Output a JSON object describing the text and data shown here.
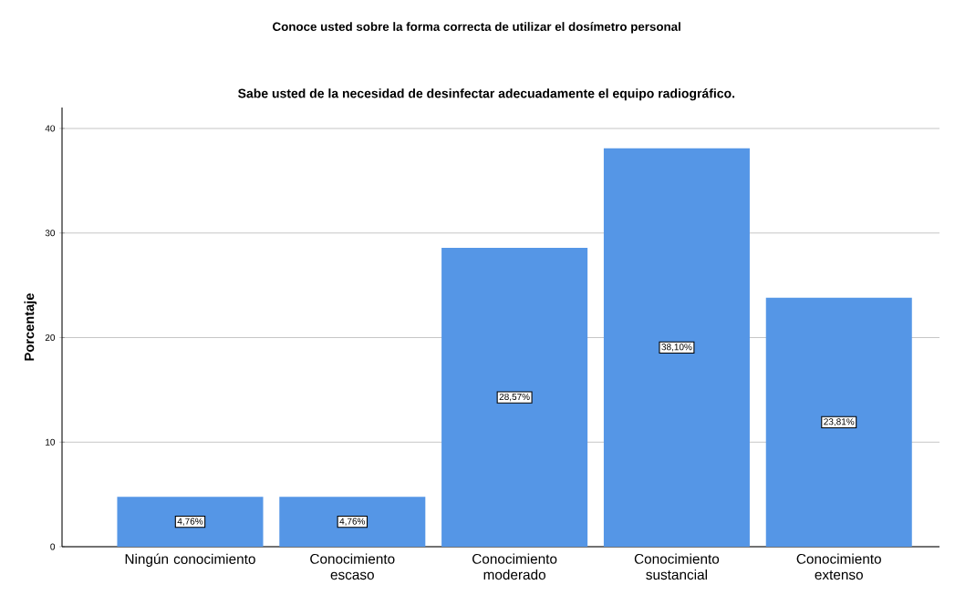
{
  "chart_data": {
    "type": "bar",
    "title": "Conoce usted sobre la forma correcta de utilizar el dosímetro personal",
    "subtitle": "Sabe usted de la necesidad de desinfectar adecuadamente el equipo radiográfico.",
    "ylabel": "Porcentaje",
    "categories": [
      "Ningún conocimiento",
      "Conocimiento escaso",
      "Conocimiento moderado",
      "Conocimiento sustancial",
      "Conocimiento extenso"
    ],
    "values": [
      4.76,
      4.76,
      28.57,
      38.1,
      23.81
    ],
    "value_labels": [
      "4,76%",
      "4,76%",
      "28,57%",
      "38,10%",
      "23,81%"
    ],
    "color": "#5596e6",
    "ylim": [
      0,
      42
    ],
    "yticks": [
      0,
      10,
      20,
      30,
      40
    ],
    "grid": "y"
  }
}
